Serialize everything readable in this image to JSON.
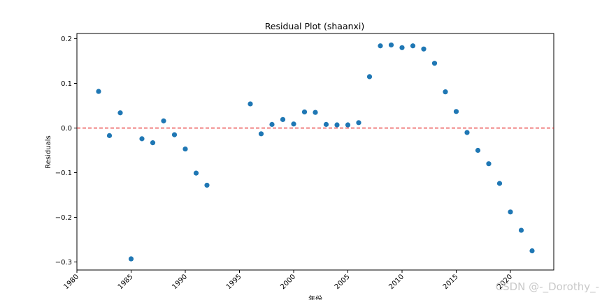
{
  "chart_data": {
    "type": "scatter",
    "title": "Residual Plot (shaanxi)",
    "xlabel": "年份",
    "ylabel": "Residuals",
    "xlim": [
      1980,
      2024
    ],
    "ylim": [
      -0.32,
      0.21
    ],
    "x_ticks": [
      1980,
      1985,
      1990,
      1995,
      2000,
      2005,
      2010,
      2015,
      2020
    ],
    "y_ticks": [
      0.2,
      0.1,
      0.0,
      -0.1,
      -0.2,
      -0.3
    ],
    "y_tick_labels": [
      "0.2",
      "0.1",
      "0.0",
      "−0.1",
      "−0.2",
      "−0.3"
    ],
    "reference_line": {
      "y": 0.0,
      "style": "dashed",
      "color": "#e41a1c"
    },
    "point_color": "#1f77b4",
    "grid": false,
    "points": [
      {
        "x": 1982,
        "y": 0.082
      },
      {
        "x": 1983,
        "y": -0.017
      },
      {
        "x": 1984,
        "y": 0.034
      },
      {
        "x": 1985,
        "y": -0.293
      },
      {
        "x": 1986,
        "y": -0.024
      },
      {
        "x": 1987,
        "y": -0.033
      },
      {
        "x": 1988,
        "y": 0.016
      },
      {
        "x": 1989,
        "y": -0.015
      },
      {
        "x": 1990,
        "y": -0.047
      },
      {
        "x": 1991,
        "y": -0.101
      },
      {
        "x": 1992,
        "y": -0.128
      },
      {
        "x": 1996,
        "y": 0.054
      },
      {
        "x": 1997,
        "y": -0.013
      },
      {
        "x": 1998,
        "y": 0.008
      },
      {
        "x": 1999,
        "y": 0.019
      },
      {
        "x": 2000,
        "y": 0.009
      },
      {
        "x": 2001,
        "y": 0.036
      },
      {
        "x": 2002,
        "y": 0.035
      },
      {
        "x": 2003,
        "y": 0.008
      },
      {
        "x": 2004,
        "y": 0.007
      },
      {
        "x": 2005,
        "y": 0.007
      },
      {
        "x": 2006,
        "y": 0.012
      },
      {
        "x": 2007,
        "y": 0.115
      },
      {
        "x": 2008,
        "y": 0.184
      },
      {
        "x": 2009,
        "y": 0.186
      },
      {
        "x": 2010,
        "y": 0.18
      },
      {
        "x": 2011,
        "y": 0.184
      },
      {
        "x": 2012,
        "y": 0.177
      },
      {
        "x": 2013,
        "y": 0.145
      },
      {
        "x": 2014,
        "y": 0.081
      },
      {
        "x": 2015,
        "y": 0.037
      },
      {
        "x": 2016,
        "y": -0.01
      },
      {
        "x": 2017,
        "y": -0.05
      },
      {
        "x": 2018,
        "y": -0.08
      },
      {
        "x": 2019,
        "y": -0.124
      },
      {
        "x": 2020,
        "y": -0.188
      },
      {
        "x": 2021,
        "y": -0.229
      },
      {
        "x": 2022,
        "y": -0.275
      }
    ]
  },
  "watermark": "CSDN @-_Dorothy_-"
}
